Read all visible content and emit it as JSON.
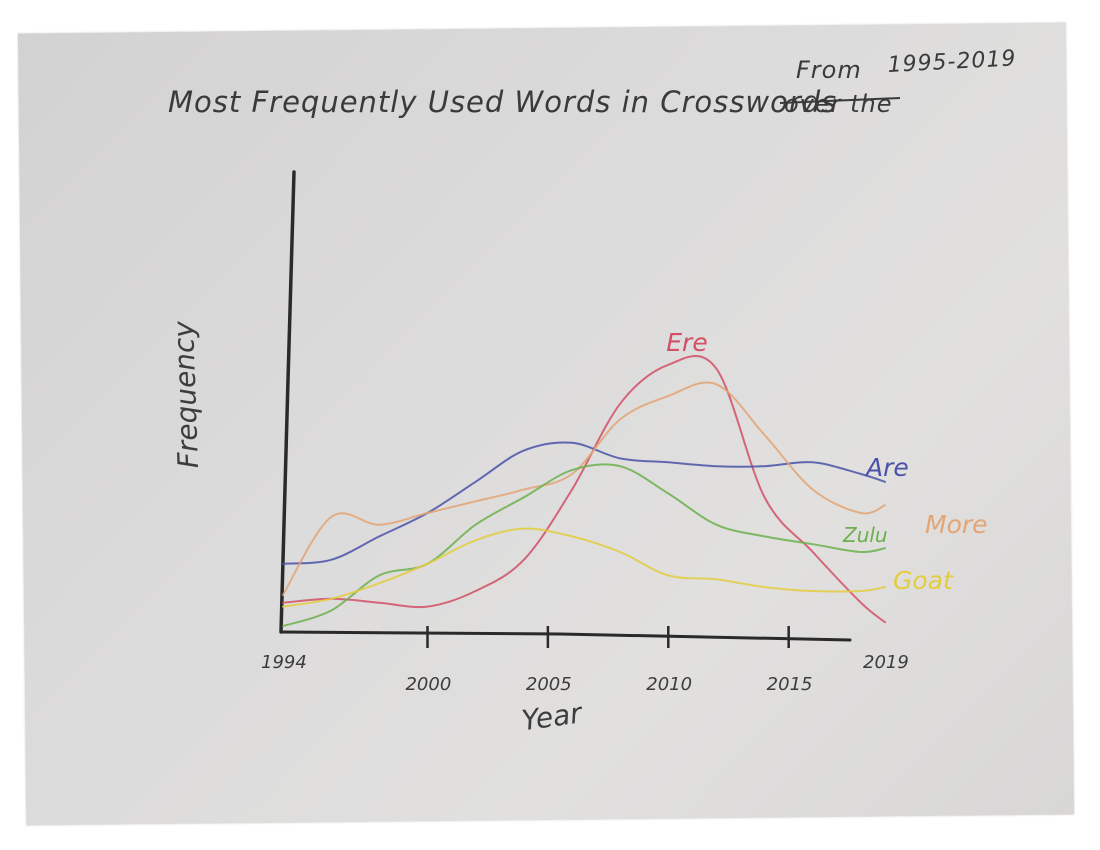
{
  "chart_data": {
    "type": "line",
    "title": "Most Frequently Used Words in Crosswords",
    "title_struck": "over the",
    "title_insert": "From",
    "title_range": "1995-2019",
    "xlabel": "Year",
    "ylabel": "Frequency",
    "x_ticks": [
      "1994",
      "2000",
      "2005",
      "2010",
      "2015",
      "2019"
    ],
    "xlim": [
      1994,
      2019
    ],
    "ylim": [
      0,
      100
    ],
    "grid": false,
    "legend": "inline labels at right end of each line",
    "x": [
      1994,
      1996,
      1998,
      2000,
      2002,
      2004,
      2006,
      2008,
      2010,
      2012,
      2014,
      2016,
      2018,
      2019
    ],
    "series": [
      {
        "name": "Ere",
        "color": "#d24f66",
        "values": [
          7,
          8,
          7,
          6,
          10,
          18,
          36,
          58,
          68,
          67,
          34,
          20,
          7,
          2
        ]
      },
      {
        "name": "Are",
        "color": "#4a52a8",
        "values": [
          17,
          18,
          24,
          30,
          38,
          46,
          48,
          44,
          43,
          42,
          42,
          43,
          40,
          38
        ]
      },
      {
        "name": "More",
        "color": "#e3a574",
        "values": [
          9,
          29,
          27,
          30,
          33,
          36,
          40,
          54,
          60,
          63,
          50,
          36,
          30,
          32
        ]
      },
      {
        "name": "Zulu",
        "color": "#6cb04e",
        "values": [
          1,
          5,
          14,
          17,
          27,
          34,
          41,
          42,
          35,
          27,
          24,
          22,
          20,
          21
        ]
      },
      {
        "name": "Goat",
        "color": "#e3cd3e",
        "values": [
          6,
          8,
          12,
          17,
          23,
          26,
          24,
          20,
          14,
          13,
          11,
          10,
          10,
          11
        ]
      }
    ]
  }
}
